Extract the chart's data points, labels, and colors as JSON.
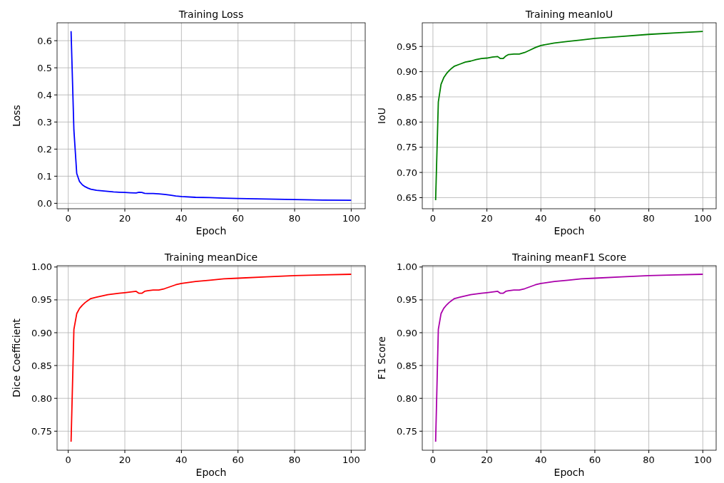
{
  "chart_data": [
    {
      "type": "line",
      "title": "Training Loss",
      "xlabel": "Epoch",
      "ylabel": "Loss",
      "grid": true,
      "xlim": [
        -3.95,
        104.95
      ],
      "xticks": [
        0,
        20,
        40,
        60,
        80,
        100
      ],
      "ylim": [
        -0.02,
        0.666
      ],
      "yticks": [
        {
          "value": 0,
          "label": "0.0"
        },
        0.1,
        0.2,
        0.3,
        0.4,
        0.5,
        0.6
      ],
      "x": [
        1,
        2,
        3,
        4,
        5,
        6,
        7,
        8,
        10,
        12,
        14,
        16,
        18,
        20,
        22,
        24,
        25,
        26,
        27,
        28,
        30,
        32,
        34,
        36,
        38,
        40,
        45,
        50,
        55,
        60,
        70,
        80,
        90,
        100
      ],
      "series": [
        {
          "color": "#0000ff",
          "values": [
            0.635,
            0.27,
            0.11,
            0.08,
            0.068,
            0.061,
            0.056,
            0.052,
            0.048,
            0.046,
            0.044,
            0.042,
            0.041,
            0.04,
            0.039,
            0.038,
            0.041,
            0.04,
            0.037,
            0.036,
            0.036,
            0.035,
            0.033,
            0.03,
            0.027,
            0.025,
            0.022,
            0.021,
            0.019,
            0.018,
            0.016,
            0.014,
            0.012,
            0.011
          ]
        }
      ]
    },
    {
      "type": "line",
      "title": "Training meanIoU",
      "xlabel": "Epoch",
      "ylabel": "IoU",
      "grid": true,
      "xlim": [
        -3.95,
        104.95
      ],
      "xticks": [
        0,
        20,
        40,
        60,
        80,
        100
      ],
      "ylim": [
        0.628,
        0.997
      ],
      "yticks": [
        0.65,
        {
          "value": 0.7,
          "label": "0.70"
        },
        0.75,
        {
          "value": 0.8,
          "label": "0.80"
        },
        0.85,
        {
          "value": 0.9,
          "label": "0.90"
        },
        0.95
      ],
      "x": [
        1,
        2,
        3,
        4,
        5,
        6,
        7,
        8,
        10,
        12,
        14,
        16,
        18,
        20,
        22,
        24,
        25,
        26,
        27,
        28,
        30,
        32,
        34,
        36,
        38,
        40,
        45,
        50,
        55,
        60,
        70,
        80,
        90,
        100
      ],
      "series": [
        {
          "color": "#008000",
          "values": [
            0.645,
            0.84,
            0.875,
            0.888,
            0.896,
            0.902,
            0.907,
            0.911,
            0.915,
            0.919,
            0.921,
            0.924,
            0.926,
            0.927,
            0.929,
            0.93,
            0.926,
            0.926,
            0.931,
            0.934,
            0.935,
            0.935,
            0.938,
            0.943,
            0.948,
            0.952,
            0.957,
            0.96,
            0.963,
            0.966,
            0.97,
            0.974,
            0.977,
            0.98
          ]
        }
      ]
    },
    {
      "type": "line",
      "title": "Training meanDice",
      "xlabel": "Epoch",
      "ylabel": "Dice Coefficient",
      "grid": true,
      "xlim": [
        -3.95,
        104.95
      ],
      "xticks": [
        0,
        20,
        40,
        60,
        80,
        100
      ],
      "ylim": [
        0.721,
        1.002
      ],
      "yticks": [
        0.75,
        {
          "value": 0.8,
          "label": "0.80"
        },
        0.85,
        {
          "value": 0.9,
          "label": "0.90"
        },
        0.95,
        {
          "value": 1,
          "label": "1.00"
        }
      ],
      "x": [
        1,
        2,
        3,
        4,
        5,
        6,
        7,
        8,
        10,
        12,
        14,
        16,
        18,
        20,
        22,
        24,
        25,
        26,
        27,
        28,
        30,
        32,
        34,
        36,
        38,
        40,
        45,
        50,
        55,
        60,
        70,
        80,
        90,
        100
      ],
      "series": [
        {
          "color": "#ff0000",
          "values": [
            0.734,
            0.905,
            0.929,
            0.937,
            0.942,
            0.946,
            0.949,
            0.952,
            0.954,
            0.956,
            0.958,
            0.959,
            0.96,
            0.961,
            0.962,
            0.963,
            0.96,
            0.96,
            0.963,
            0.964,
            0.965,
            0.965,
            0.967,
            0.97,
            0.973,
            0.975,
            0.978,
            0.98,
            0.982,
            0.983,
            0.985,
            0.987,
            0.988,
            0.989
          ]
        }
      ]
    },
    {
      "type": "line",
      "title": "Training meanF1 Score",
      "xlabel": "Epoch",
      "ylabel": "F1 Score",
      "grid": true,
      "xlim": [
        -3.95,
        104.95
      ],
      "xticks": [
        0,
        20,
        40,
        60,
        80,
        100
      ],
      "ylim": [
        0.721,
        1.002
      ],
      "yticks": [
        0.75,
        {
          "value": 0.8,
          "label": "0.80"
        },
        0.85,
        {
          "value": 0.9,
          "label": "0.90"
        },
        0.95,
        {
          "value": 1,
          "label": "1.00"
        }
      ],
      "x": [
        1,
        2,
        3,
        4,
        5,
        6,
        7,
        8,
        10,
        12,
        14,
        16,
        18,
        20,
        22,
        24,
        25,
        26,
        27,
        28,
        30,
        32,
        34,
        36,
        38,
        40,
        45,
        50,
        55,
        60,
        70,
        80,
        90,
        100
      ],
      "series": [
        {
          "color": "#aa00aa",
          "values": [
            0.734,
            0.905,
            0.929,
            0.937,
            0.942,
            0.946,
            0.949,
            0.952,
            0.954,
            0.956,
            0.958,
            0.959,
            0.96,
            0.961,
            0.962,
            0.963,
            0.96,
            0.96,
            0.963,
            0.964,
            0.965,
            0.965,
            0.967,
            0.97,
            0.973,
            0.975,
            0.978,
            0.98,
            0.982,
            0.983,
            0.985,
            0.987,
            0.988,
            0.989
          ]
        }
      ]
    }
  ]
}
